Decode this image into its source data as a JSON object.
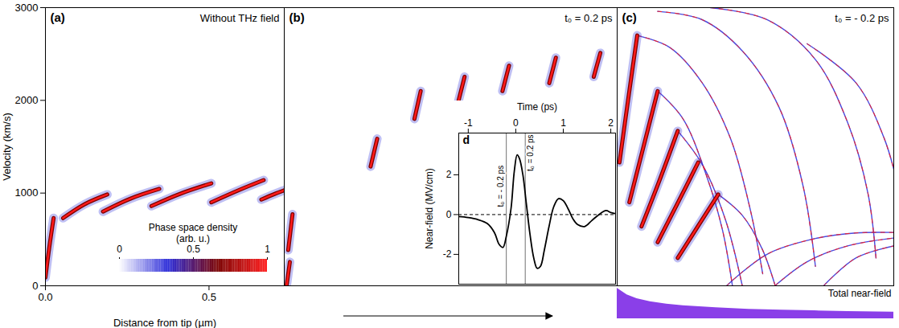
{
  "chart_data": [
    {
      "type": "phase_space",
      "panel": "(a)",
      "title": "Without THz field",
      "x_label": "Distance from tip (µm)",
      "y_label": "Velocity (km/s)",
      "xlim": [
        0,
        0.73
      ],
      "ylim": [
        0,
        3000
      ],
      "xticks": [
        {
          "value": 0,
          "label": "0.0"
        },
        {
          "value": 0.5,
          "label": "0.5"
        }
      ],
      "yticks": [
        0,
        1000,
        2000,
        3000
      ],
      "streaks": [
        {
          "x": [
            0,
            0.012,
            0.025
          ],
          "y": [
            90,
            420,
            730
          ]
        },
        {
          "x": [
            0.054,
            0.12,
            0.189
          ],
          "y": [
            730,
            880,
            985
          ]
        },
        {
          "x": [
            0.176,
            0.26,
            0.348
          ],
          "y": [
            800,
            940,
            1045
          ]
        },
        {
          "x": [
            0.324,
            0.41,
            0.507
          ],
          "y": [
            860,
            990,
            1105
          ]
        },
        {
          "x": [
            0.507,
            0.59,
            0.667
          ],
          "y": [
            900,
            1030,
            1140
          ]
        },
        {
          "x": [
            0.66,
            0.7,
            0.745
          ],
          "y": [
            930,
            990,
            1050
          ]
        }
      ],
      "colorbar": {
        "title": "Phase space density",
        "unit": "(arb. u.)",
        "range": [
          0,
          1
        ],
        "ticks": [
          0,
          0.5,
          1
        ],
        "colors": [
          "#ffffff",
          "#2a2ad8",
          "#7a0000",
          "#ff1a1a"
        ]
      }
    },
    {
      "type": "phase_space",
      "panel": "(b)",
      "title": "t₀ = 0.2 ps",
      "xlim": [
        0,
        1.01
      ],
      "ylim": [
        0,
        3000
      ],
      "tick_labels": false,
      "streaks": [
        {
          "x": [
            0.007,
            0.017
          ],
          "y": [
            0,
            257
          ]
        },
        {
          "x": [
            0.012,
            0.025
          ],
          "y": [
            386,
            771
          ]
        },
        {
          "x": [
            0.262,
            0.282
          ],
          "y": [
            1286,
            1586
          ]
        },
        {
          "x": [
            0.395,
            0.414
          ],
          "y": [
            1800,
            2100
          ]
        },
        {
          "x": [
            0.527,
            0.547
          ],
          "y": [
            1971,
            2254
          ]
        },
        {
          "x": [
            0.662,
            0.682
          ],
          "y": [
            2100,
            2374
          ]
        },
        {
          "x": [
            0.804,
            0.824
          ],
          "y": [
            2186,
            2460
          ]
        },
        {
          "x": [
            0.939,
            0.959
          ],
          "y": [
            2254,
            2511
          ]
        }
      ]
    },
    {
      "type": "phase_space",
      "panel": "(c)",
      "title": "t₀ = - 0.2 ps",
      "xlim": [
        0,
        0.84
      ],
      "ylim": [
        0,
        3000
      ],
      "tick_labels": false,
      "streaks": [
        {
          "x": [
            0.007,
            0.035,
            0.061
          ],
          "y": [
            1330,
            2050,
            2700
          ]
        },
        {
          "x": [
            0.037,
            0.08,
            0.123
          ],
          "y": [
            900,
            1500,
            2100
          ]
        },
        {
          "x": [
            0.074,
            0.13,
            0.184
          ],
          "y": [
            640,
            1150,
            1670
          ]
        },
        {
          "x": [
            0.123,
            0.185,
            0.246
          ],
          "y": [
            470,
            900,
            1330
          ]
        },
        {
          "x": [
            0.184,
            0.245,
            0.307
          ],
          "y": [
            300,
            640,
            985
          ]
        }
      ],
      "arcs": [
        {
          "x": [
            0.061,
            0.16,
            0.258,
            0.344,
            0.405,
            0.442
          ],
          "y": [
            2700,
            2570,
            2190,
            1590,
            810,
            130
          ]
        },
        {
          "x": [
            0.123,
            0.258,
            0.381,
            0.491,
            0.565,
            0.602
          ],
          "y": [
            2960,
            2870,
            2530,
            1930,
            1070,
            210
          ]
        },
        {
          "x": [
            0.283,
            0.455,
            0.602,
            0.7,
            0.762,
            0.786
          ],
          "y": [
            3000,
            2870,
            2440,
            1760,
            990,
            300
          ]
        },
        {
          "x": [
            0.577,
            0.725,
            0.811,
            0.853
          ],
          "y": [
            2610,
            2190,
            1590,
            1070
          ]
        },
        {
          "x": [
            0.123,
            0.2,
            0.27,
            0.32,
            0.35
          ],
          "y": [
            2100,
            1800,
            1200,
            600,
            0
          ]
        },
        {
          "x": [
            0.184,
            0.26,
            0.33,
            0.38
          ],
          "y": [
            1670,
            1300,
            700,
            0
          ]
        },
        {
          "x": [
            0.307,
            0.38,
            0.44,
            0.48
          ],
          "y": [
            985,
            760,
            400,
            0
          ]
        },
        {
          "x": [
            0.332,
            0.455,
            0.602,
            0.725,
            0.84
          ],
          "y": [
            0,
            340,
            510,
            570,
            575
          ]
        },
        {
          "x": [
            0.479,
            0.577,
            0.7,
            0.84
          ],
          "y": [
            0,
            260,
            430,
            515
          ]
        },
        {
          "x": [
            0.627,
            0.725,
            0.84
          ],
          "y": [
            0,
            300,
            430
          ]
        }
      ],
      "near_field": {
        "type": "area",
        "label": "Total near-field",
        "color": "#8a3fe8",
        "ylim": [
          0,
          1
        ],
        "x": [
          0,
          0.03,
          0.06,
          0.1,
          0.15,
          0.2,
          0.3,
          0.4,
          0.5,
          0.6,
          0.7,
          0.84
        ],
        "values": [
          1,
          0.78,
          0.66,
          0.56,
          0.48,
          0.43,
          0.36,
          0.31,
          0.28,
          0.26,
          0.24,
          0.22
        ]
      }
    },
    {
      "type": "line",
      "panel": "d",
      "x_label": "Time (ps)",
      "y_label": "Near-field (MV/cm)",
      "xlim": [
        -1.2,
        2.1
      ],
      "ylim": [
        -3.5,
        4.1
      ],
      "xticks": [
        -1,
        0,
        1,
        2
      ],
      "yticks": [
        -2,
        0,
        2
      ],
      "color": "#000000",
      "baseline": 0,
      "x": [
        -1.2,
        -1.0,
        -0.8,
        -0.6,
        -0.45,
        -0.35,
        -0.27,
        -0.2,
        -0.1,
        -0.03,
        0.03,
        0.08,
        0.15,
        0.22,
        0.3,
        0.38,
        0.45,
        0.52,
        0.6,
        0.7,
        0.8,
        0.9,
        1.0,
        1.1,
        1.2,
        1.3,
        1.45,
        1.6,
        1.75,
        1.9,
        2.0,
        2.1
      ],
      "values": [
        -0.1,
        -0.15,
        -0.25,
        -0.45,
        -0.9,
        -1.5,
        -1.65,
        -1.1,
        0.3,
        2.2,
        3.0,
        2.8,
        2.0,
        0.6,
        -1.0,
        -2.2,
        -2.7,
        -2.6,
        -1.8,
        -0.6,
        0.4,
        0.8,
        0.7,
        0.3,
        -0.2,
        -0.5,
        -0.6,
        -0.3,
        0.0,
        0.2,
        0.1,
        0.05
      ],
      "markers": [
        {
          "x": -0.2,
          "label": "t₀ = - 0.2 ps"
        },
        {
          "x": 0.2,
          "label": "t₀ = 0.2 ps"
        }
      ]
    }
  ]
}
